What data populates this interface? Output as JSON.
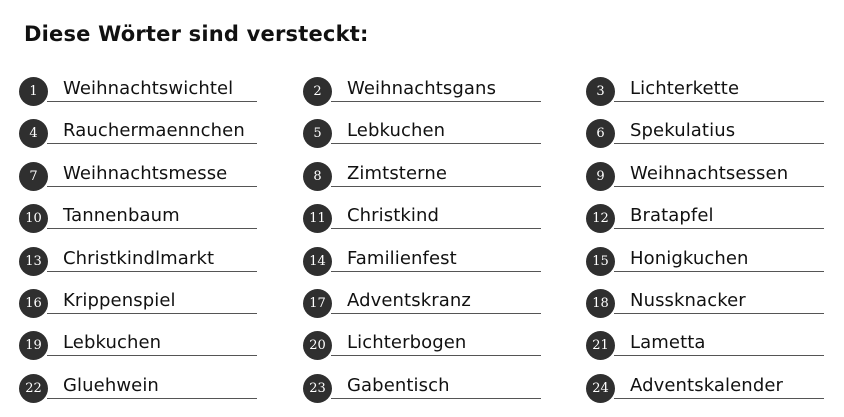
{
  "title": "Diese Wörter sind versteckt:",
  "items": [
    {
      "number": "1",
      "word": "Weihnachtswichtel"
    },
    {
      "number": "2",
      "word": "Weihnachtsgans"
    },
    {
      "number": "3",
      "word": "Lichterkette"
    },
    {
      "number": "4",
      "word": "Rauchermaennchen"
    },
    {
      "number": "5",
      "word": "Lebkuchen"
    },
    {
      "number": "6",
      "word": "Spekulatius"
    },
    {
      "number": "7",
      "word": "Weihnachtsmesse"
    },
    {
      "number": "8",
      "word": "Zimtsterne"
    },
    {
      "number": "9",
      "word": "Weihnachtsessen"
    },
    {
      "number": "10",
      "word": "Tannenbaum"
    },
    {
      "number": "11",
      "word": "Christkind"
    },
    {
      "number": "12",
      "word": "Bratapfel"
    },
    {
      "number": "13",
      "word": "Christkindlmarkt"
    },
    {
      "number": "14",
      "word": "Familienfest"
    },
    {
      "number": "15",
      "word": "Honigkuchen"
    },
    {
      "number": "16",
      "word": "Krippenspiel"
    },
    {
      "number": "17",
      "word": "Adventskranz"
    },
    {
      "number": "18",
      "word": "Nussknacker"
    },
    {
      "number": "19",
      "word": "Lebkuchen"
    },
    {
      "number": "20",
      "word": "Lichterbogen"
    },
    {
      "number": "21",
      "word": "Lametta"
    },
    {
      "number": "22",
      "word": "Gluehwein"
    },
    {
      "number": "23",
      "word": "Gabentisch"
    },
    {
      "number": "24",
      "word": "Adventskalender"
    }
  ]
}
